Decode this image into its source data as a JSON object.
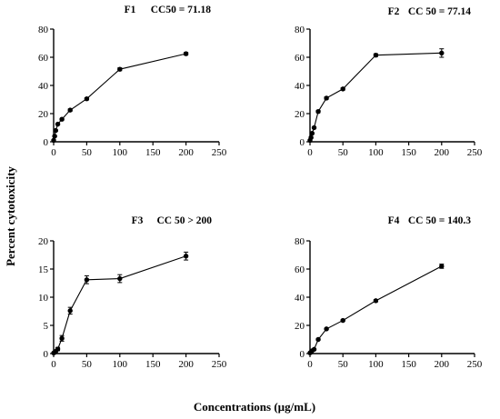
{
  "figure": {
    "ylabel": "Percent cytotoxicity",
    "xlabel": "Concentrations (µg/mL)"
  },
  "chart_data": [
    {
      "type": "line",
      "title": "F1",
      "annotation": "CC50 = 71.18",
      "xlim": [
        0,
        250
      ],
      "ylim": [
        0,
        80
      ],
      "xticks": [
        "0",
        "50",
        "100",
        "150",
        "200",
        "250"
      ],
      "yticks": [
        "0",
        "20",
        "40",
        "60",
        "80"
      ],
      "x": [
        0,
        1.56,
        3.13,
        6.25,
        12.5,
        25,
        50,
        100,
        200
      ],
      "y": [
        1,
        4,
        8,
        12.5,
        16,
        22.5,
        30.5,
        51.5,
        62.5
      ],
      "err": [
        0.5,
        0.5,
        0.5,
        0.5,
        0.5,
        0.8,
        0.8,
        1,
        1
      ]
    },
    {
      "type": "line",
      "title": "F2",
      "annotation": "CC 50 = 77.14",
      "xlim": [
        0,
        250
      ],
      "ylim": [
        0,
        80
      ],
      "xticks": [
        "0",
        "50",
        "100",
        "150",
        "200",
        "250"
      ],
      "yticks": [
        "0",
        "20",
        "40",
        "60",
        "80"
      ],
      "x": [
        0,
        1.56,
        3.13,
        6.25,
        12.5,
        25,
        50,
        100,
        200
      ],
      "y": [
        1,
        3,
        6,
        10,
        21.5,
        31,
        37.5,
        61.5,
        63
      ],
      "err": [
        0.5,
        0.5,
        0.5,
        0.5,
        0.8,
        0.8,
        0.8,
        1,
        3
      ]
    },
    {
      "type": "line",
      "title": "F3",
      "annotation": "CC 50 > 200",
      "xlim": [
        0,
        250
      ],
      "ylim": [
        0,
        20
      ],
      "xticks": [
        "0",
        "50",
        "100",
        "150",
        "200",
        "250"
      ],
      "yticks": [
        "0",
        "5",
        "10",
        "15",
        "20"
      ],
      "x": [
        0,
        1.56,
        3.13,
        6.25,
        12.5,
        25,
        50,
        100,
        200
      ],
      "y": [
        0.1,
        0.2,
        0.4,
        0.8,
        2.7,
        7.6,
        13.1,
        13.3,
        17.3
      ],
      "err": [
        0.1,
        0.1,
        0.2,
        0.3,
        0.5,
        0.6,
        0.7,
        0.7,
        0.7
      ]
    },
    {
      "type": "line",
      "title": "F4",
      "annotation": "CC 50 = 140.3",
      "xlim": [
        0,
        250
      ],
      "ylim": [
        0,
        80
      ],
      "xticks": [
        "0",
        "50",
        "100",
        "150",
        "200",
        "250"
      ],
      "yticks": [
        "0",
        "20",
        "40",
        "60",
        "80"
      ],
      "x": [
        0,
        1.56,
        3.13,
        6.25,
        12.5,
        25,
        50,
        100,
        200
      ],
      "y": [
        0.5,
        1,
        2,
        3,
        10,
        17.5,
        23.5,
        37.5,
        62
      ],
      "err": [
        0.3,
        0.3,
        0.3,
        0.3,
        0.5,
        0.5,
        0.5,
        0.8,
        1.5
      ]
    }
  ]
}
